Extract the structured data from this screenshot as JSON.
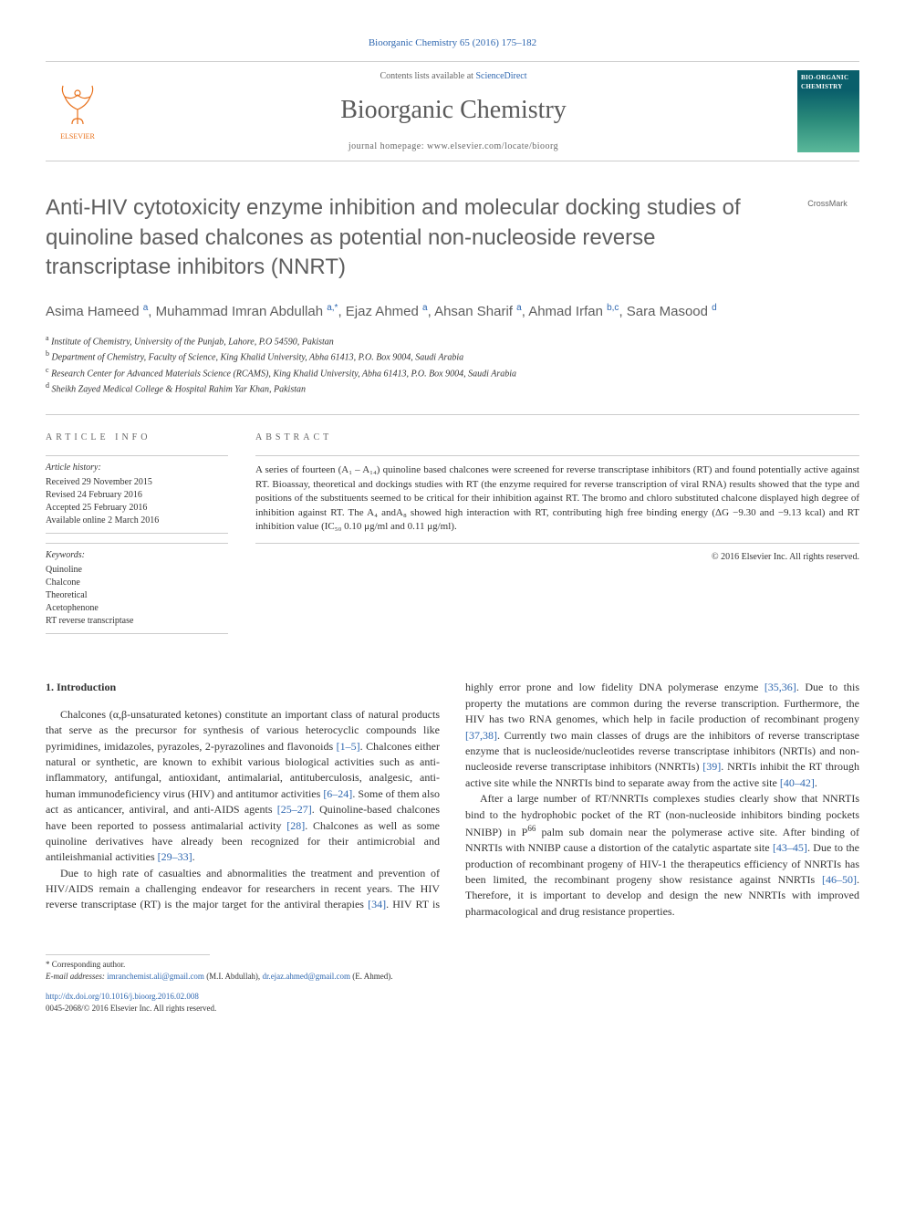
{
  "header": {
    "citation": "Bioorganic Chemistry 65 (2016) 175–182",
    "contents_prefix": "Contents lists available at ",
    "contents_link": "ScienceDirect",
    "journal_name": "Bioorganic Chemistry",
    "homepage": "journal homepage: www.elsevier.com/locate/bioorg",
    "cover_title": "BIO-ORGANIC CHEMISTRY",
    "elsevier_label": "ELSEVIER"
  },
  "crossmark": "CrossMark",
  "title": "Anti-HIV cytotoxicity enzyme inhibition and molecular docking studies of quinoline based chalcones as potential non-nucleoside reverse transcriptase inhibitors (NNRT)",
  "authors_html": "Asima Hameed <sup>a</sup>, Muhammad Imran Abdullah <sup>a,*</sup>, Ejaz Ahmed <sup>a</sup>, Ahsan Sharif <sup>a</sup>, Ahmad Irfan <sup>b,c</sup>, Sara Masood <sup>d</sup>",
  "affiliations": [
    "a|Institute of Chemistry, University of the Punjab, Lahore, P.O 54590, Pakistan",
    "b|Department of Chemistry, Faculty of Science, King Khalid University, Abha 61413, P.O. Box 9004, Saudi Arabia",
    "c|Research Center for Advanced Materials Science (RCAMS), King Khalid University, Abha 61413, P.O. Box 9004, Saudi Arabia",
    "d|Sheikh Zayed Medical College & Hospital Rahim Yar Khan, Pakistan"
  ],
  "info": {
    "heading": "ARTICLE INFO",
    "history_label": "Article history:",
    "history": [
      "Received 29 November 2015",
      "Revised 24 February 2016",
      "Accepted 25 February 2016",
      "Available online 2 March 2016"
    ],
    "keywords_label": "Keywords:",
    "keywords": [
      "Quinoline",
      "Chalcone",
      "Theoretical",
      "Acetophenone",
      "RT reverse transcriptase"
    ]
  },
  "abstract": {
    "heading": "ABSTRACT",
    "text": "A series of fourteen (A₁ – A₁₄) quinoline based chalcones were screened for reverse transcriptase inhibitors (RT) and found potentially active against RT. Bioassay, theoretical and dockings studies with RT (the enzyme required for reverse transcription of viral RNA) results showed that the type and positions of the substituents seemed to be critical for their inhibition against RT. The bromo and chloro substituted chalcone displayed high degree of inhibition against RT. The A₄ andA₈ showed high interaction with RT, contributing high free binding energy (ΔG −9.30 and −9.13 kcal) and RT inhibition value (IC₅₀ 0.10 μg/ml and 0.11 μg/ml).",
    "copyright": "© 2016 Elsevier Inc. All rights reserved."
  },
  "body": {
    "section_heading": "1. Introduction",
    "p1": "Chalcones (α,β-unsaturated ketones) constitute an important class of natural products that serve as the precursor for synthesis of various heterocyclic compounds like pyrimidines, imidazoles, pyrazoles, 2-pyrazolines and flavonoids <a href='#'>[1–5]</a>. Chalcones either natural or synthetic, are known to exhibit various biological activities such as anti-inflammatory, antifungal, antioxidant, antimalarial, antituberculosis, analgesic, anti-human immunodeficiency virus (HIV) and antitumor activities <a href='#'>[6–24]</a>. Some of them also act as anticancer, antiviral, and anti-AIDS agents <a href='#'>[25–27]</a>. Quinoline-based chalcones have been reported to possess antimalarial activity <a href='#'>[28]</a>. Chalcones as well as some quinoline derivatives have already been recognized for their antimicrobial and antileishmanial activities <a href='#'>[29–33]</a>.",
    "p2": "Due to high rate of casualties and abnormalities the treatment and prevention of HIV/AIDS remain a challenging endeavor for researchers in recent years. The HIV reverse transcriptase (RT) is the major target for the antiviral therapies <a href='#'>[34]</a>. HIV RT is highly error prone and low fidelity DNA polymerase enzyme <a href='#'>[35,36]</a>. Due to this property the mutations are common during the reverse transcription. Furthermore, the HIV has two RNA genomes, which help in facile production of recombinant progeny <a href='#'>[37,38]</a>. Currently two main classes of drugs are the inhibitors of reverse transcriptase enzyme that is nucleoside/nucleotides reverse transcriptase inhibitors (NRTIs) and non-nucleoside reverse transcriptase inhibitors (NNRTIs) <a href='#'>[39]</a>. NRTIs inhibit the RT through active site while the NNRTIs bind to separate away from the active site <a href='#'>[40–42]</a>.",
    "p3": "After a large number of RT/NNRTIs complexes studies clearly show that NNRTIs bind to the hydrophobic pocket of the RT (non-nucleoside inhibitors binding pockets NNIBP) in P<sup>66</sup> palm sub domain near the polymerase active site. After binding of NNRTIs with NNIBP cause a distortion of the catalytic aspartate site <a href='#'>[43–45]</a>. Due to the production of recombinant progeny of HIV-1 the therapeutics efficiency of NNRTIs has been limited, the recombinant progeny show resistance against NNRTIs <a href='#'>[46–50]</a>. Therefore, it is important to develop and design the new NNRTIs with improved pharmacological and drug resistance properties."
  },
  "footer": {
    "corr": "* Corresponding author.",
    "email_label": "E-mail addresses:",
    "email1": "imranchemist.ali@gmail.com",
    "email1_who": "(M.I. Abdullah),",
    "email2": "dr.ejaz.ahmed@gmail.com",
    "email2_who": "(E. Ahmed).",
    "doi": "http://dx.doi.org/10.1016/j.bioorg.2016.02.008",
    "issn": "0045-2068/© 2016 Elsevier Inc. All rights reserved."
  },
  "colors": {
    "link": "#3068b0",
    "elsevier_orange": "#e8701a",
    "heading_gray": "#5e5e5e"
  }
}
